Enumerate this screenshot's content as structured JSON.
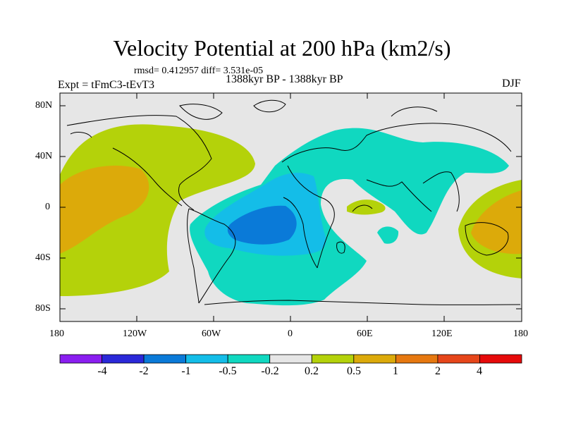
{
  "title": "Velocity Potential at 200 hPa (km2/s)",
  "stats": "rmsd= 0.412957 diff= 3.531e-05",
  "period": "1388kyr BP - 1388kyr BP",
  "experiment": "Expt = tFmC3-tEvT3",
  "season": "DJF",
  "map": {
    "lat_ticks": [
      "80N",
      "40N",
      "0",
      "40S",
      "80S"
    ],
    "lon_ticks": [
      "180",
      "120W",
      "60W",
      "0",
      "60E",
      "120E",
      "180"
    ]
  },
  "colorbar": {
    "colors": [
      "#8a1ef0",
      "#2a28d8",
      "#0a7ad8",
      "#14bde8",
      "#10d8c0",
      "#e6e6e6",
      "#b4d20a",
      "#dcaa0a",
      "#e67810",
      "#e6461a",
      "#e60a0a"
    ],
    "labels": [
      "-4",
      "-2",
      "-1",
      "-0.5",
      "-0.2",
      "0.2",
      "0.5",
      "1",
      "2",
      "4"
    ]
  },
  "fill_colors": {
    "neutral": "#e6e6e6",
    "pos1": "#b4d20a",
    "pos2": "#dcaa0a",
    "neg1": "#10d8c0",
    "neg2": "#14bde8",
    "neg3": "#0a7ad8"
  }
}
